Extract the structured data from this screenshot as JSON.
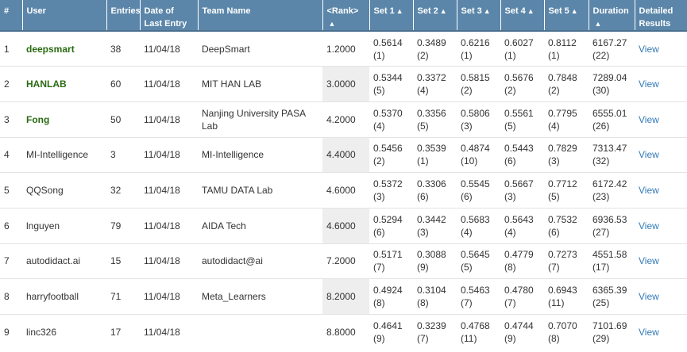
{
  "headers": {
    "num": "#",
    "user": "User",
    "entries": "Entries",
    "date": "Date of Last Entry",
    "team": "Team Name",
    "rank": "<Rank>",
    "set1": "Set 1",
    "set2": "Set 2",
    "set3": "Set 3",
    "set4": "Set 4",
    "set5": "Set 5",
    "duration": "Duration",
    "details": "Detailed Results",
    "sort_icon": "▲"
  },
  "rows": [
    {
      "num": "1",
      "user": "deepsmart",
      "user_bold": true,
      "entries": "38",
      "date": "11/04/18",
      "team": "DeepSmart",
      "rank": "1.2000",
      "rank_shaded": false,
      "s1": "0.5614",
      "s1r": "(1)",
      "s2": "0.3489",
      "s2r": "(2)",
      "s3": "0.6216",
      "s3r": "(1)",
      "s4": "0.6027",
      "s4r": "(1)",
      "s5": "0.8112",
      "s5r": "(1)",
      "dur": "6167.27",
      "durr": "(22)",
      "view": "View"
    },
    {
      "num": "2",
      "user": "HANLAB",
      "user_bold": true,
      "entries": "60",
      "date": "11/04/18",
      "team": "MIT HAN LAB",
      "rank": "3.0000",
      "rank_shaded": true,
      "s1": "0.5344",
      "s1r": "(5)",
      "s2": "0.3372",
      "s2r": "(4)",
      "s3": "0.5815",
      "s3r": "(2)",
      "s4": "0.5676",
      "s4r": "(2)",
      "s5": "0.7848",
      "s5r": "(2)",
      "dur": "7289.04",
      "durr": "(30)",
      "view": "View"
    },
    {
      "num": "3",
      "user": "Fong",
      "user_bold": true,
      "entries": "50",
      "date": "11/04/18",
      "team": "Nanjing University PASA Lab",
      "rank": "4.2000",
      "rank_shaded": false,
      "s1": "0.5370",
      "s1r": "(4)",
      "s2": "0.3356",
      "s2r": "(5)",
      "s3": "0.5806",
      "s3r": "(3)",
      "s4": "0.5561",
      "s4r": "(5)",
      "s5": "0.7795",
      "s5r": "(4)",
      "dur": "6555.01",
      "durr": "(26)",
      "view": "View"
    },
    {
      "num": "4",
      "user": "MI-Intelligence",
      "user_bold": false,
      "entries": "3",
      "date": "11/04/18",
      "team": "MI-Intelligence",
      "rank": "4.4000",
      "rank_shaded": true,
      "s1": "0.5456",
      "s1r": "(2)",
      "s2": "0.3539",
      "s2r": "(1)",
      "s3": "0.4874",
      "s3r": "(10)",
      "s4": "0.5443",
      "s4r": "(6)",
      "s5": "0.7829",
      "s5r": "(3)",
      "dur": "7313.47",
      "durr": "(32)",
      "view": "View"
    },
    {
      "num": "5",
      "user": "QQSong",
      "user_bold": false,
      "entries": "32",
      "date": "11/04/18",
      "team": "TAMU DATA Lab",
      "rank": "4.6000",
      "rank_shaded": false,
      "s1": "0.5372",
      "s1r": "(3)",
      "s2": "0.3306",
      "s2r": "(6)",
      "s3": "0.5545",
      "s3r": "(6)",
      "s4": "0.5667",
      "s4r": "(3)",
      "s5": "0.7712",
      "s5r": "(5)",
      "dur": "6172.42",
      "durr": "(23)",
      "view": "View"
    },
    {
      "num": "6",
      "user": "lnguyen",
      "user_bold": false,
      "entries": "79",
      "date": "11/04/18",
      "team": "AIDA Tech",
      "rank": "4.6000",
      "rank_shaded": true,
      "s1": "0.5294",
      "s1r": "(6)",
      "s2": "0.3442",
      "s2r": "(3)",
      "s3": "0.5683",
      "s3r": "(4)",
      "s4": "0.5643",
      "s4r": "(4)",
      "s5": "0.7532",
      "s5r": "(6)",
      "dur": "6936.53",
      "durr": "(27)",
      "view": "View"
    },
    {
      "num": "7",
      "user": "autodidact.ai",
      "user_bold": false,
      "entries": "15",
      "date": "11/04/18",
      "team": "autodidact@ai",
      "rank": "7.2000",
      "rank_shaded": false,
      "s1": "0.5171",
      "s1r": "(7)",
      "s2": "0.3088",
      "s2r": "(9)",
      "s3": "0.5645",
      "s3r": "(5)",
      "s4": "0.4779",
      "s4r": "(8)",
      "s5": "0.7273",
      "s5r": "(7)",
      "dur": "4551.58",
      "durr": "(17)",
      "view": "View"
    },
    {
      "num": "8",
      "user": "harryfootball",
      "user_bold": false,
      "entries": "71",
      "date": "11/04/18",
      "team": "Meta_Learners",
      "rank": "8.2000",
      "rank_shaded": true,
      "s1": "0.4924",
      "s1r": "(8)",
      "s2": "0.3104",
      "s2r": "(8)",
      "s3": "0.5463",
      "s3r": "(7)",
      "s4": "0.4780",
      "s4r": "(7)",
      "s5": "0.6943",
      "s5r": "(11)",
      "dur": "6365.39",
      "durr": "(25)",
      "view": "View"
    },
    {
      "num": "9",
      "user": "linc326",
      "user_bold": false,
      "entries": "17",
      "date": "11/04/18",
      "team": "",
      "rank": "8.8000",
      "rank_shaded": false,
      "s1": "0.4641",
      "s1r": "(9)",
      "s2": "0.3239",
      "s2r": "(7)",
      "s3": "0.4768",
      "s3r": "(11)",
      "s4": "0.4744",
      "s4r": "(9)",
      "s5": "0.7070",
      "s5r": "(8)",
      "dur": "7101.69",
      "durr": "(29)",
      "view": "View"
    }
  ]
}
